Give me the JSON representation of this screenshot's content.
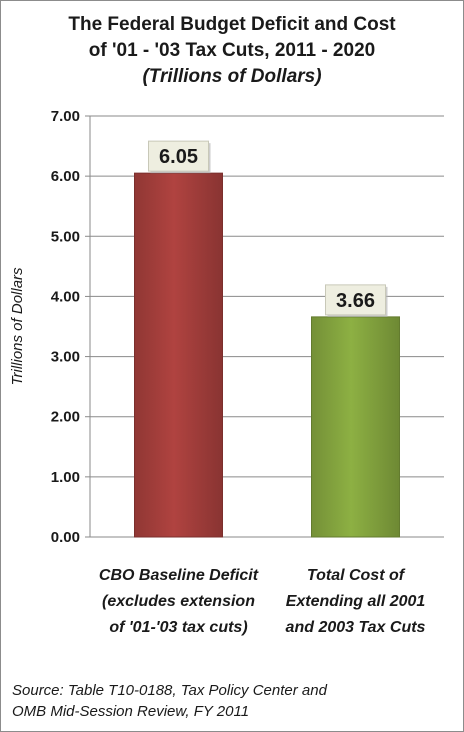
{
  "chart_data": {
    "type": "bar",
    "title_lines": [
      "The Federal Budget Deficit and Cost",
      "of '01 - '03 Tax Cuts, 2011 - 2020"
    ],
    "subtitle": "(Trillions of Dollars)",
    "ylabel": "Trillions of Dollars",
    "ylim": [
      0,
      7
    ],
    "yticks": [
      "0.00",
      "1.00",
      "2.00",
      "3.00",
      "4.00",
      "5.00",
      "6.00",
      "7.00"
    ],
    "grid": true,
    "categories": [
      [
        "CBO Baseline  Deficit",
        "(excludes extension",
        "of '01-'03 tax cuts)"
      ],
      [
        "Total Cost of",
        "Extending all 2001",
        "and 2003 Tax Cuts"
      ]
    ],
    "values": [
      6.05,
      3.66
    ],
    "data_labels": [
      "6.05",
      "3.66"
    ],
    "colors": [
      "#b04340",
      "#8db043"
    ]
  },
  "source": {
    "lines": [
      "Source: Table T10-0188, Tax Policy Center  and",
      "OMB Mid-Session Review, FY 2011"
    ]
  }
}
